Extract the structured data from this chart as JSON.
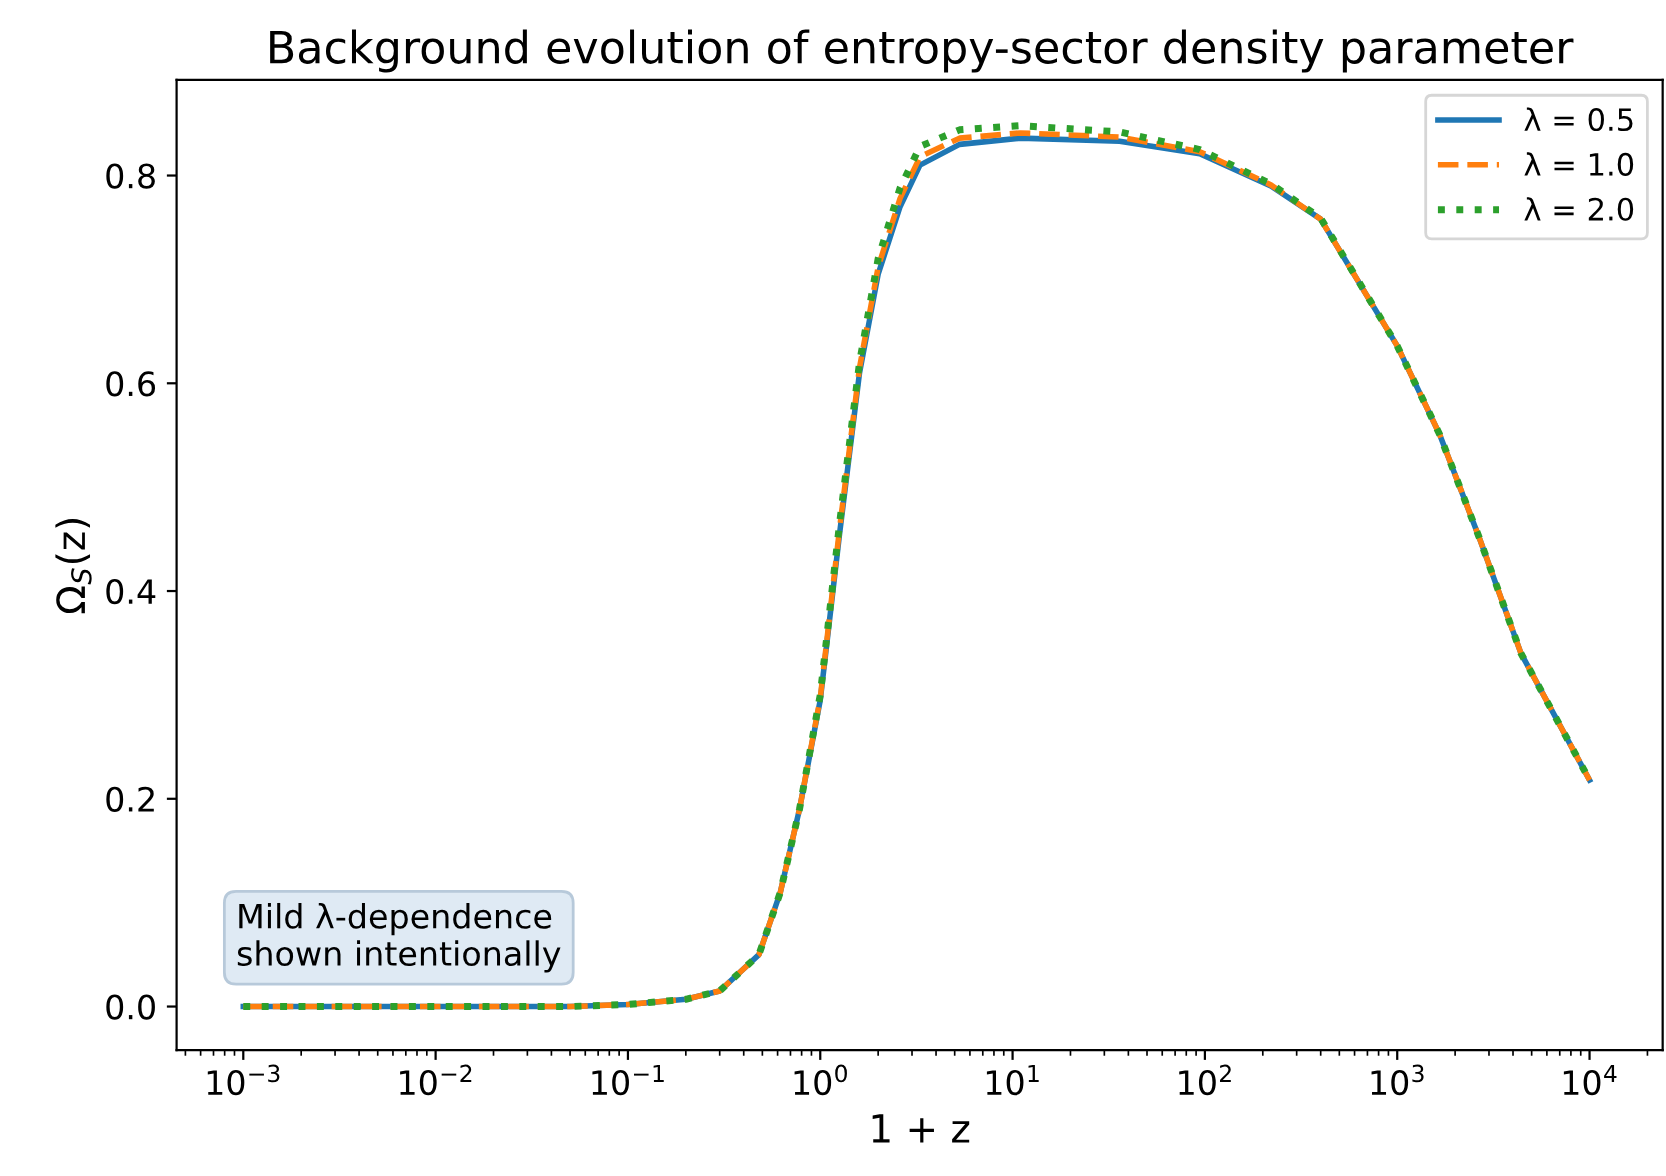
{
  "chart_data": {
    "type": "line",
    "title": "Background evolution of entropy-sector density parameter",
    "xlabel": "1 + z",
    "ylabel": "Ω$_{S}$(z)",
    "log": "x",
    "x": [
      0.001,
      0.01,
      0.05,
      0.1,
      0.2,
      0.3,
      0.48,
      0.62,
      0.78,
      1.0,
      1.26,
      1.6,
      2.0,
      2.6,
      3.3,
      5.3,
      11,
      36,
      94,
      220,
      400,
      1000,
      1660,
      2700,
      4400,
      10000
    ],
    "series": [
      {
        "name": "λ = 0.5",
        "color": "#1f77b4",
        "line_style": "solid",
        "values": [
          0,
          0,
          0,
          0.002,
          0.007,
          0.015,
          0.05,
          0.11,
          0.19,
          0.295,
          0.455,
          0.61,
          0.705,
          0.77,
          0.81,
          0.83,
          0.836,
          0.833,
          0.821,
          0.79,
          0.758,
          0.636,
          0.551,
          0.449,
          0.34,
          0.218
        ]
      },
      {
        "name": "λ = 1.0",
        "color": "#ff7f0e",
        "line_style": "dashed",
        "values": [
          0,
          0,
          0,
          0.002,
          0.007,
          0.015,
          0.05,
          0.11,
          0.19,
          0.297,
          0.46,
          0.615,
          0.712,
          0.778,
          0.818,
          0.836,
          0.841,
          0.837,
          0.823,
          0.791,
          0.758,
          0.636,
          0.551,
          0.449,
          0.34,
          0.218
        ]
      },
      {
        "name": "λ = 2.0",
        "color": "#2ca02c",
        "line_style": "dotted",
        "values": [
          0,
          0,
          0,
          0.002,
          0.007,
          0.015,
          0.05,
          0.11,
          0.19,
          0.3,
          0.465,
          0.62,
          0.72,
          0.788,
          0.828,
          0.844,
          0.848,
          0.842,
          0.825,
          0.792,
          0.759,
          0.636,
          0.551,
          0.449,
          0.34,
          0.218
        ]
      }
    ],
    "xlim": [
      0.00045,
      24000
    ],
    "ylim": [
      -0.042,
      0.892
    ],
    "xticks": [
      {
        "value": 0.001,
        "label": "10$^{−3}$"
      },
      {
        "value": 0.01,
        "label": "10$^{−2}$"
      },
      {
        "value": 0.1,
        "label": "10$^{−1}$"
      },
      {
        "value": 1,
        "label": "10$^{0}$"
      },
      {
        "value": 10,
        "label": "10$^{1}$"
      },
      {
        "value": 100,
        "label": "10$^{2}$"
      },
      {
        "value": 1000,
        "label": "10$^{3}$"
      },
      {
        "value": 10000,
        "label": "10$^{4}$"
      }
    ],
    "yticks": [
      {
        "value": 0,
        "label": "0.0"
      },
      {
        "value": 0.2,
        "label": "0.2"
      },
      {
        "value": 0.4,
        "label": "0.4"
      },
      {
        "value": 0.6,
        "label": "0.6"
      },
      {
        "value": 0.8,
        "label": "0.8"
      }
    ],
    "grid": false,
    "legend": "top right",
    "annotations": [
      "Mild λ-dependence\nshown intentionally"
    ]
  }
}
